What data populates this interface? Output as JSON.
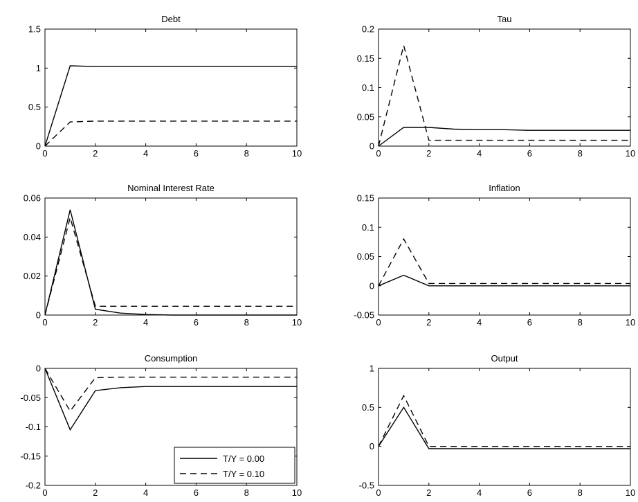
{
  "chart_data": [
    {
      "type": "line",
      "title": "Debt",
      "xlim": [
        0,
        10
      ],
      "ylim": [
        0,
        1.5
      ],
      "xticks": [
        0,
        2,
        4,
        6,
        8,
        10
      ],
      "xtick_labels": [
        "0",
        "2",
        "4",
        "6",
        "8",
        "10"
      ],
      "yticks": [
        0,
        0.5,
        1,
        1.5
      ],
      "ytick_labels": [
        "0",
        "0.5",
        "1",
        "1.5"
      ],
      "x": [
        0,
        1,
        2,
        3,
        4,
        5,
        6,
        7,
        8,
        9,
        10
      ],
      "series": [
        {
          "name": "T/Y = 0.00",
          "style": "solid",
          "values": [
            0,
            1.03,
            1.02,
            1.02,
            1.02,
            1.02,
            1.02,
            1.02,
            1.02,
            1.02,
            1.02
          ]
        },
        {
          "name": "T/Y = 0.10",
          "style": "dashed",
          "values": [
            0,
            0.31,
            0.32,
            0.32,
            0.32,
            0.32,
            0.32,
            0.32,
            0.32,
            0.32,
            0.32
          ]
        }
      ]
    },
    {
      "type": "line",
      "title": "Tau",
      "xlim": [
        0,
        10
      ],
      "ylim": [
        0,
        0.2
      ],
      "xticks": [
        0,
        2,
        4,
        6,
        8,
        10
      ],
      "xtick_labels": [
        "0",
        "2",
        "4",
        "6",
        "8",
        "10"
      ],
      "yticks": [
        0,
        0.05,
        0.1,
        0.15,
        0.2
      ],
      "ytick_labels": [
        "0",
        "0.05",
        "0.1",
        "0.15",
        "0.2"
      ],
      "x": [
        0,
        1,
        2,
        3,
        4,
        5,
        6,
        7,
        8,
        9,
        10
      ],
      "series": [
        {
          "name": "T/Y = 0.00",
          "style": "solid",
          "values": [
            0,
            0.032,
            0.032,
            0.029,
            0.028,
            0.028,
            0.027,
            0.027,
            0.027,
            0.027,
            0.027
          ]
        },
        {
          "name": "T/Y = 0.10",
          "style": "dashed",
          "values": [
            0,
            0.172,
            0.01,
            0.01,
            0.01,
            0.01,
            0.01,
            0.01,
            0.01,
            0.01,
            0.01
          ]
        }
      ]
    },
    {
      "type": "line",
      "title": "Nominal Interest Rate",
      "xlim": [
        0,
        10
      ],
      "ylim": [
        0,
        0.06
      ],
      "xticks": [
        0,
        2,
        4,
        6,
        8,
        10
      ],
      "xtick_labels": [
        "0",
        "2",
        "4",
        "6",
        "8",
        "10"
      ],
      "yticks": [
        0,
        0.02,
        0.04,
        0.06
      ],
      "ytick_labels": [
        "0",
        "0.02",
        "0.04",
        "0.06"
      ],
      "x": [
        0,
        1,
        2,
        3,
        4,
        5,
        6,
        7,
        8,
        9,
        10
      ],
      "series": [
        {
          "name": "T/Y = 0.00",
          "style": "solid",
          "values": [
            0,
            0.054,
            0.003,
            0.001,
            0.0003,
            0,
            0,
            0,
            0,
            0,
            0
          ]
        },
        {
          "name": "T/Y = 0.10",
          "style": "dashed",
          "values": [
            0,
            0.05,
            0.0045,
            0.0045,
            0.0045,
            0.0045,
            0.0045,
            0.0045,
            0.0045,
            0.0045,
            0.0045
          ]
        }
      ]
    },
    {
      "type": "line",
      "title": "Inflation",
      "xlim": [
        0,
        10
      ],
      "ylim": [
        -0.05,
        0.15
      ],
      "xticks": [
        0,
        2,
        4,
        6,
        8,
        10
      ],
      "xtick_labels": [
        "0",
        "2",
        "4",
        "6",
        "8",
        "10"
      ],
      "yticks": [
        -0.05,
        0,
        0.05,
        0.1,
        0.15
      ],
      "ytick_labels": [
        "-0.05",
        "0",
        "0.05",
        "0.1",
        "0.15"
      ],
      "x": [
        0,
        1,
        2,
        3,
        4,
        5,
        6,
        7,
        8,
        9,
        10
      ],
      "series": [
        {
          "name": "T/Y = 0.00",
          "style": "solid",
          "values": [
            0,
            0.018,
            0,
            0,
            0,
            0,
            0,
            0,
            0,
            0,
            0
          ]
        },
        {
          "name": "T/Y = 0.10",
          "style": "dashed",
          "values": [
            0,
            0.08,
            0.004,
            0.004,
            0.004,
            0.004,
            0.004,
            0.004,
            0.004,
            0.004,
            0.004
          ]
        }
      ]
    },
    {
      "type": "line",
      "title": "Consumption",
      "xlim": [
        0,
        10
      ],
      "ylim": [
        -0.2,
        0
      ],
      "xticks": [
        0,
        2,
        4,
        6,
        8,
        10
      ],
      "xtick_labels": [
        "0",
        "2",
        "4",
        "6",
        "8",
        "10"
      ],
      "yticks": [
        -0.2,
        -0.15,
        -0.1,
        -0.05,
        0
      ],
      "ytick_labels": [
        "-0.2",
        "-0.15",
        "-0.1",
        "-0.05",
        "0"
      ],
      "x": [
        0,
        1,
        2,
        3,
        4,
        5,
        6,
        7,
        8,
        9,
        10
      ],
      "legend": {
        "position": "bottom-right",
        "entries": [
          "T/Y = 0.00",
          "T/Y = 0.10"
        ]
      },
      "series": [
        {
          "name": "T/Y = 0.00",
          "style": "solid",
          "values": [
            0,
            -0.105,
            -0.038,
            -0.033,
            -0.031,
            -0.031,
            -0.031,
            -0.031,
            -0.031,
            -0.031,
            -0.031
          ]
        },
        {
          "name": "T/Y = 0.10",
          "style": "dashed",
          "values": [
            0,
            -0.073,
            -0.016,
            -0.015,
            -0.015,
            -0.015,
            -0.015,
            -0.015,
            -0.015,
            -0.015,
            -0.015
          ]
        }
      ]
    },
    {
      "type": "line",
      "title": "Output",
      "xlim": [
        0,
        10
      ],
      "ylim": [
        -0.5,
        1
      ],
      "xticks": [
        0,
        2,
        4,
        6,
        8,
        10
      ],
      "xtick_labels": [
        "0",
        "2",
        "4",
        "6",
        "8",
        "10"
      ],
      "yticks": [
        -0.5,
        0,
        0.5,
        1
      ],
      "ytick_labels": [
        "-0.5",
        "0",
        "0.5",
        "1"
      ],
      "x": [
        0,
        1,
        2,
        3,
        4,
        5,
        6,
        7,
        8,
        9,
        10
      ],
      "series": [
        {
          "name": "T/Y = 0.00",
          "style": "solid",
          "values": [
            0,
            0.5,
            -0.03,
            -0.03,
            -0.03,
            -0.03,
            -0.03,
            -0.03,
            -0.03,
            -0.03,
            -0.03
          ]
        },
        {
          "name": "T/Y = 0.10",
          "style": "dashed",
          "values": [
            0,
            0.65,
            0,
            0,
            0,
            0,
            0,
            0,
            0,
            0,
            0
          ]
        }
      ]
    }
  ]
}
